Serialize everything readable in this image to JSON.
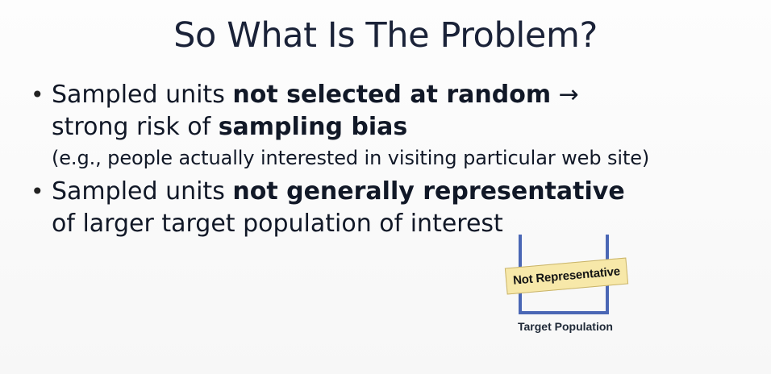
{
  "slide": {
    "title": "So What Is The Problem?",
    "bullets": [
      {
        "text_1": "Sampled units ",
        "strong_1": "not selected at random",
        "arrow": " →",
        "text_2": "strong risk of ",
        "strong_2": "sampling bias",
        "sub": "(e.g., people actually interested in visiting particular web site)"
      },
      {
        "text_1": "Sampled units ",
        "strong_1": "not generally representative",
        "text_2": "of larger target population of interest"
      }
    ]
  },
  "diagram": {
    "stamp_label": "Not Representative",
    "caption": "Target Population"
  }
}
